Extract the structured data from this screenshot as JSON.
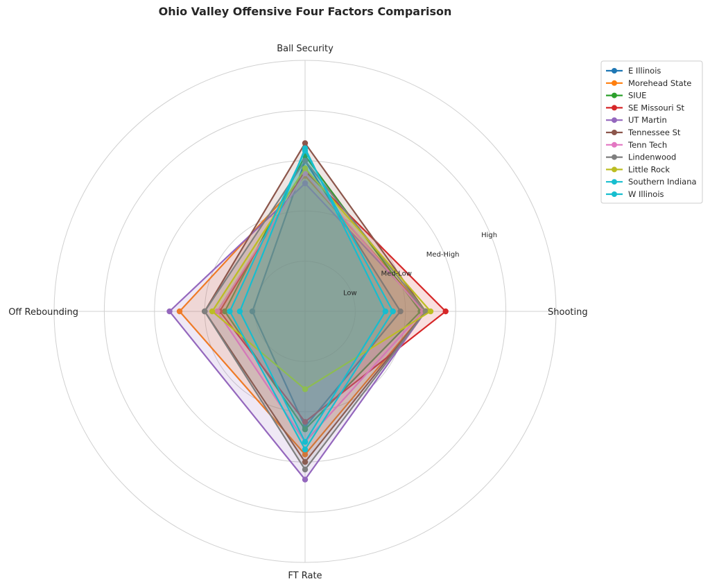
{
  "chart_data": {
    "type": "radar",
    "title": "Ohio Valley Offensive Four Factors Comparison",
    "axes": [
      "Ball Security",
      "Shooting",
      "FT Rate",
      "Off Rebounding"
    ],
    "ring_labels": [
      "Low",
      "Med-Low",
      "Med-High",
      "High"
    ],
    "rlim": [
      0,
      5
    ],
    "grid": true,
    "legend_position": "top-right outside",
    "series": [
      {
        "name": "E Illinois",
        "color": "#1f77b4",
        "values": [
          3.0,
          1.9,
          2.3,
          1.05
        ]
      },
      {
        "name": "Morehead State",
        "color": "#ff7f0e",
        "values": [
          2.7,
          2.4,
          2.85,
          2.5
        ]
      },
      {
        "name": "SIUE",
        "color": "#2ca02c",
        "values": [
          3.1,
          2.3,
          2.35,
          1.6
        ]
      },
      {
        "name": "SE Missouri St",
        "color": "#d62728",
        "values": [
          2.8,
          2.8,
          2.2,
          1.7
        ]
      },
      {
        "name": "UT Martin",
        "color": "#9467bd",
        "values": [
          2.55,
          2.4,
          3.35,
          2.7
        ]
      },
      {
        "name": "Tennessee St",
        "color": "#8c564b",
        "values": [
          3.35,
          2.4,
          3.0,
          2.0
        ]
      },
      {
        "name": "Tenn Tech",
        "color": "#e377c2",
        "values": [
          2.75,
          2.35,
          2.6,
          1.75
        ]
      },
      {
        "name": "Lindenwood",
        "color": "#7f7f7f",
        "values": [
          3.0,
          2.4,
          3.15,
          2.0
        ]
      },
      {
        "name": "Little Rock",
        "color": "#bcbd22",
        "values": [
          2.85,
          2.5,
          1.55,
          1.85
        ]
      },
      {
        "name": "Southern Indiana",
        "color": "#17becf",
        "values": [
          3.25,
          1.6,
          2.6,
          1.3
        ]
      },
      {
        "name": "W Illinois",
        "color": "#17becf",
        "values": [
          3.2,
          1.75,
          2.75,
          1.5
        ]
      }
    ]
  }
}
